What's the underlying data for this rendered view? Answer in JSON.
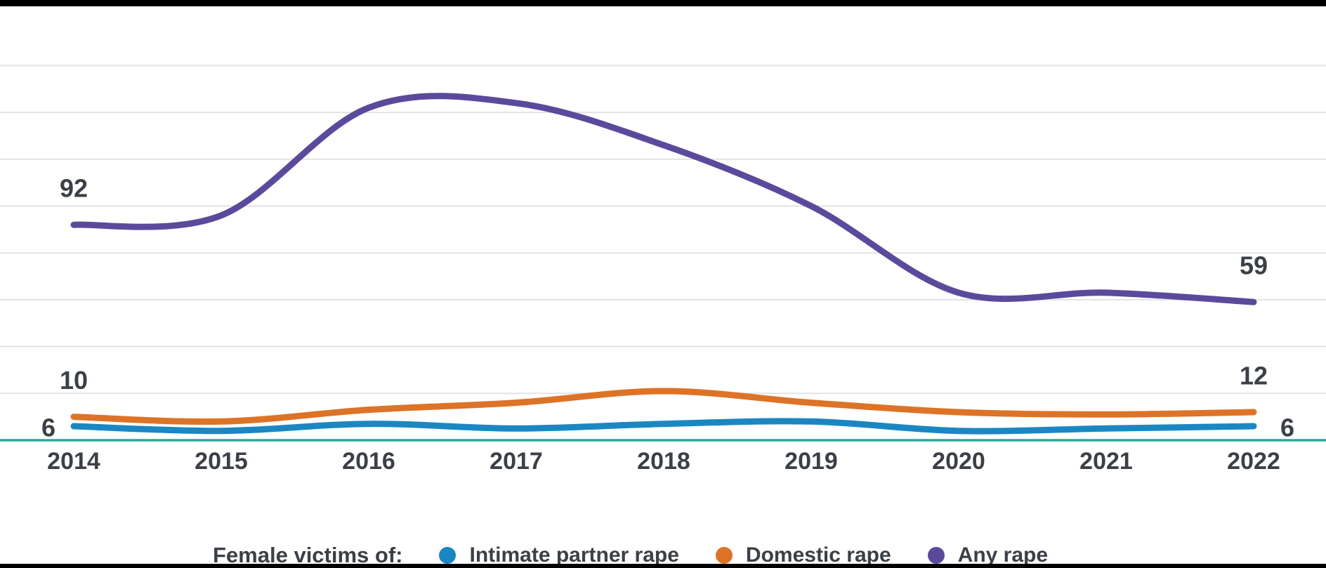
{
  "chart_data": {
    "type": "line",
    "curve": "smooth",
    "title": "",
    "xlabel": "",
    "ylabel": "",
    "categories": [
      "2014",
      "2015",
      "2016",
      "2017",
      "2018",
      "2019",
      "2020",
      "2021",
      "2022"
    ],
    "series": [
      {
        "name": "Intimate partner rape",
        "color": "#1b87c2",
        "values": [
          6,
          4,
          7,
          5,
          7,
          8,
          4,
          5,
          6
        ]
      },
      {
        "name": "Domestic rape",
        "color": "#dd7327",
        "values": [
          10,
          8,
          13,
          16,
          21,
          16,
          12,
          11,
          12
        ]
      },
      {
        "name": "Any rape",
        "color": "#5b4a9c",
        "values": [
          92,
          96,
          142,
          144,
          126,
          100,
          63,
          63,
          59
        ]
      }
    ],
    "value_labels": [
      {
        "series": "Any rape",
        "at": "first",
        "text": "92",
        "placement": "above"
      },
      {
        "series": "Any rape",
        "at": "last",
        "text": "59",
        "placement": "above"
      },
      {
        "series": "Domestic rape",
        "at": "first",
        "text": "10",
        "placement": "above"
      },
      {
        "series": "Domestic rape",
        "at": "last",
        "text": "12",
        "placement": "above"
      },
      {
        "series": "Intimate partner rape",
        "at": "first",
        "text": "6",
        "placement": "left"
      },
      {
        "series": "Intimate partner rape",
        "at": "last",
        "text": "6",
        "placement": "right"
      }
    ],
    "ylim": [
      0,
      170
    ],
    "gridline_values": [
      20,
      40,
      60,
      80,
      100,
      120,
      140,
      160
    ],
    "grid": true,
    "legend_position": "bottom"
  },
  "legend": {
    "title": "Female victims of:",
    "items": [
      {
        "label": "Intimate partner rape",
        "color": "#1b87c2"
      },
      {
        "label": "Domestic rape",
        "color": "#dd7327"
      },
      {
        "label": "Any rape",
        "color": "#5b4a9c"
      }
    ]
  },
  "colors": {
    "background": "#ffffff",
    "gridline": "#e3e3e3",
    "axis_line": "#2aa79e",
    "text": "#3b4046",
    "edge_bars": "#000000"
  }
}
